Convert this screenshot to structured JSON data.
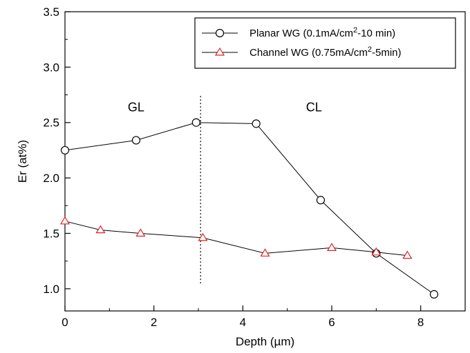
{
  "chart_data": {
    "type": "line",
    "title": "",
    "xlabel": "Depth (µm)",
    "ylabel": "Er (at%)",
    "xlim": [
      0,
      9
    ],
    "ylim": [
      0.8,
      3.5
    ],
    "xticks": [
      0,
      2,
      4,
      6,
      8
    ],
    "yticks": [
      1.0,
      1.5,
      2.0,
      2.5,
      3.0,
      3.5
    ],
    "xtick_labels": [
      "0",
      "2",
      "4",
      "6",
      "8"
    ],
    "ytick_labels": [
      "1.0",
      "1.5",
      "2.0",
      "2.5",
      "3.0",
      "3.5"
    ],
    "grid": false,
    "legend_position": "top-right",
    "series": [
      {
        "name": "Planar WG (0.1mA/cm2-10 min)",
        "legend_parts": {
          "pre": "Planar WG (0.1mA/cm",
          "sup": "2",
          "post": "-10 min)"
        },
        "marker": "circle",
        "color": "#000000",
        "x": [
          0,
          1.6,
          2.95,
          4.3,
          5.75,
          7.0,
          8.3
        ],
        "y": [
          2.25,
          2.34,
          2.5,
          2.49,
          1.8,
          1.32,
          0.95
        ]
      },
      {
        "name": "Channel WG (0.75mA/cm2-5min)",
        "legend_parts": {
          "pre": "Channel WG (0.75mA/cm",
          "sup": "2",
          "post": "-5min)"
        },
        "marker": "triangle",
        "color": "#dd2222",
        "x": [
          0,
          0.8,
          1.7,
          3.1,
          4.5,
          6.0,
          7.0,
          7.7
        ],
        "y": [
          1.61,
          1.53,
          1.5,
          1.46,
          1.32,
          1.37,
          1.33,
          1.3
        ]
      }
    ],
    "annotations": [
      {
        "text": "GL",
        "x": 1.6,
        "y": 2.6
      },
      {
        "text": "CL",
        "x": 5.6,
        "y": 2.6
      }
    ],
    "divider_x": 3.05,
    "divider_y": [
      1.03,
      2.74
    ]
  }
}
